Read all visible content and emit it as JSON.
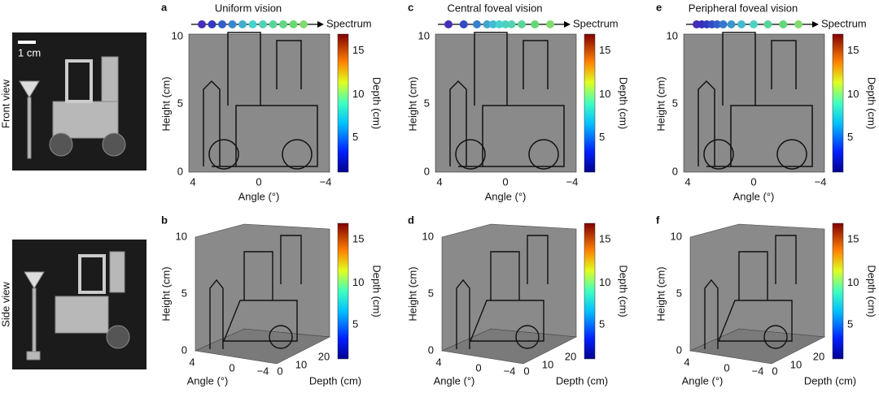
{
  "photos": {
    "front_label": "Front view",
    "side_label": "Side view",
    "scale": "1 cm"
  },
  "panels": [
    {
      "label": "a",
      "title": "Uniform vision",
      "spectrum": "Spectrum",
      "x_label": "Angle (°)",
      "y_label": "Height (cm)",
      "x_ticks": [
        "4",
        "0",
        "−4"
      ],
      "y_ticks": [
        "0",
        "5",
        "10"
      ],
      "colorbar_label": "Depth (cm)",
      "colorbar_ticks": [
        "5",
        "10",
        "15"
      ]
    },
    {
      "label": "c",
      "title": "Central foveal vision",
      "spectrum": "Spectrum",
      "x_label": "Angle (°)",
      "y_label": "Height (cm)",
      "x_ticks": [
        "4",
        "0",
        "−4"
      ],
      "y_ticks": [
        "0",
        "5",
        "10"
      ],
      "colorbar_label": "Depth (cm)",
      "colorbar_ticks": [
        "5",
        "10",
        "15"
      ]
    },
    {
      "label": "e",
      "title": "Peripheral foveal vision",
      "spectrum": "Spectrum",
      "x_label": "Angle (°)",
      "y_label": "Height (cm)",
      "x_ticks": [
        "4",
        "0",
        "−4"
      ],
      "y_ticks": [
        "0",
        "5",
        "10"
      ],
      "colorbar_label": "Depth (cm)",
      "colorbar_ticks": [
        "5",
        "10",
        "15"
      ]
    },
    {
      "label": "b",
      "x_label": "Angle (°)",
      "y_label": "Height (cm)",
      "z_label": "Depth (cm)",
      "x_ticks": [
        "4",
        "0",
        "−4"
      ],
      "y_ticks": [
        "0",
        "5",
        "10"
      ],
      "z_ticks": [
        "0",
        "10",
        "20"
      ],
      "colorbar_label": "Depth (cm)",
      "colorbar_ticks": [
        "5",
        "10",
        "15"
      ]
    },
    {
      "label": "d",
      "x_label": "Angle (°)",
      "y_label": "Height (cm)",
      "z_label": "Depth (cm)",
      "x_ticks": [
        "4",
        "0",
        "−4"
      ],
      "y_ticks": [
        "0",
        "5",
        "10"
      ],
      "z_ticks": [
        "0",
        "10",
        "20"
      ],
      "colorbar_label": "Depth (cm)",
      "colorbar_ticks": [
        "5",
        "10",
        "15"
      ]
    },
    {
      "label": "f",
      "x_label": "Angle (°)",
      "y_label": "Height (cm)",
      "z_label": "Depth (cm)",
      "x_ticks": [
        "4",
        "0",
        "−4"
      ],
      "y_ticks": [
        "0",
        "5",
        "10"
      ],
      "z_ticks": [
        "0",
        "10",
        "20"
      ],
      "colorbar_label": "Depth (cm)",
      "colorbar_ticks": [
        "5",
        "10",
        "15"
      ]
    }
  ]
}
